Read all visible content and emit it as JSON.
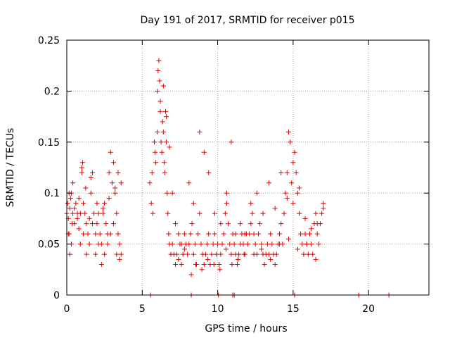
{
  "chart_data": {
    "type": "scatter",
    "title": "Day 191 of 2017, SRMTID for receiver p015",
    "xlabel": "GPS time / hours",
    "ylabel": "SRMTID / TECUs",
    "xlim": [
      0,
      24
    ],
    "ylim": [
      0,
      0.25
    ],
    "xticks": [
      0,
      5,
      10,
      15,
      20
    ],
    "yticks": [
      0,
      0.05,
      0.1,
      0.15,
      0.2,
      0.25
    ],
    "xtick_labels": [
      "0",
      "5",
      "10",
      "15",
      "20"
    ],
    "ytick_labels": [
      "0",
      "0.05",
      "0.1",
      "0.15",
      "0.2",
      "0.25"
    ],
    "grid": true,
    "marker": "+",
    "color": "#e00000",
    "series": [
      {
        "name": "SRMTID",
        "x": [
          0.0,
          0.05,
          0.1,
          0.15,
          0.2,
          0.25,
          0.3,
          0.35,
          0.4,
          0.5,
          0.6,
          0.7,
          0.8,
          0.9,
          1.0,
          1.05,
          1.1,
          1.2,
          1.3,
          1.4,
          1.5,
          1.6,
          1.7,
          1.8,
          1.9,
          2.0,
          2.1,
          2.2,
          2.3,
          2.4,
          2.5,
          2.6,
          2.7,
          2.8,
          2.9,
          3.0,
          3.1,
          3.2,
          3.3,
          3.4,
          3.5,
          3.6,
          0.1,
          0.2,
          0.3,
          0.5,
          0.7,
          0.9,
          1.1,
          1.3,
          1.5,
          1.7,
          1.9,
          2.1,
          2.3,
          2.5,
          2.7,
          2.9,
          3.1,
          3.3,
          3.5,
          0.15,
          0.4,
          0.8,
          1.0,
          1.25,
          1.6,
          2.0,
          2.4,
          2.8,
          3.2,
          3.4,
          3.6,
          5.5,
          5.6,
          5.7,
          5.8,
          5.9,
          6.0,
          6.05,
          6.1,
          6.15,
          6.2,
          6.25,
          6.3,
          6.35,
          6.4,
          6.45,
          6.5,
          6.55,
          6.6,
          6.65,
          6.7,
          6.75,
          6.8,
          6.9,
          7.0,
          7.1,
          7.2,
          7.3,
          7.4,
          7.5,
          7.6,
          7.7,
          7.8,
          7.9,
          5.65,
          5.85,
          6.0,
          6.2,
          6.4,
          6.6,
          6.8,
          7.0,
          7.2,
          7.4,
          7.6,
          7.8,
          8.0,
          8.1,
          8.2,
          8.3,
          8.4,
          8.5,
          8.6,
          8.7,
          8.8,
          8.9,
          9.0,
          9.1,
          9.2,
          9.3,
          9.4,
          9.5,
          9.6,
          9.7,
          9.8,
          9.9,
          10.0,
          10.1,
          10.2,
          10.3,
          10.4,
          10.5,
          10.6,
          10.7,
          10.8,
          10.9,
          11.0,
          11.1,
          11.2,
          11.3,
          11.4,
          11.5,
          11.6,
          11.7,
          11.8,
          11.9,
          8.1,
          8.4,
          8.8,
          9.1,
          9.4,
          9.8,
          10.2,
          10.6,
          10.9,
          11.2,
          11.5,
          11.8,
          8.25,
          8.55,
          8.95,
          9.35,
          9.75,
          10.15,
          10.55,
          10.95,
          11.35,
          11.75,
          12.0,
          12.1,
          12.2,
          12.3,
          12.4,
          12.5,
          12.6,
          12.7,
          12.8,
          12.9,
          13.0,
          13.1,
          13.2,
          13.3,
          13.4,
          13.5,
          13.6,
          13.7,
          13.8,
          13.9,
          14.0,
          14.1,
          14.2,
          14.3,
          14.4,
          14.5,
          14.6,
          14.7,
          14.8,
          14.9,
          15.0,
          15.1,
          15.2,
          15.3,
          15.4,
          15.5,
          15.6,
          15.7,
          15.8,
          15.9,
          16.0,
          16.1,
          16.2,
          16.3,
          16.4,
          16.5,
          16.6,
          16.7,
          16.8,
          16.9,
          17.0,
          12.2,
          12.6,
          13.0,
          13.4,
          13.8,
          14.2,
          14.6,
          15.0,
          15.4,
          15.8,
          16.2,
          16.6,
          17.0,
          12.4,
          12.9,
          13.5,
          14.1,
          14.7,
          15.3,
          15.9,
          16.5,
          5.55,
          8.25,
          10.05,
          11.0,
          11.1,
          15.1,
          19.35,
          21.35
        ],
        "y": [
          0.08,
          0.09,
          0.075,
          0.06,
          0.085,
          0.095,
          0.1,
          0.07,
          0.08,
          0.085,
          0.09,
          0.075,
          0.065,
          0.08,
          0.12,
          0.13,
          0.09,
          0.08,
          0.07,
          0.06,
          0.075,
          0.1,
          0.12,
          0.08,
          0.06,
          0.07,
          0.08,
          0.06,
          0.05,
          0.08,
          0.09,
          0.07,
          0.06,
          0.12,
          0.14,
          0.11,
          0.13,
          0.1,
          0.08,
          0.06,
          0.05,
          0.04,
          0.06,
          0.04,
          0.05,
          0.07,
          0.08,
          0.05,
          0.06,
          0.04,
          0.05,
          0.07,
          0.04,
          0.05,
          0.03,
          0.04,
          0.05,
          0.06,
          0.07,
          0.04,
          0.035,
          0.1,
          0.11,
          0.095,
          0.125,
          0.105,
          0.115,
          0.09,
          0.085,
          0.095,
          0.105,
          0.12,
          0.11,
          0.11,
          0.09,
          0.08,
          0.15,
          0.13,
          0.2,
          0.22,
          0.23,
          0.21,
          0.18,
          0.15,
          0.14,
          0.17,
          0.16,
          0.13,
          0.12,
          0.18,
          0.15,
          0.1,
          0.08,
          0.06,
          0.05,
          0.04,
          0.05,
          0.04,
          0.03,
          0.04,
          0.035,
          0.05,
          0.03,
          0.04,
          0.06,
          0.05,
          0.12,
          0.14,
          0.16,
          0.19,
          0.205,
          0.175,
          0.145,
          0.1,
          0.07,
          0.06,
          0.05,
          0.045,
          0.04,
          0.05,
          0.06,
          0.07,
          0.04,
          0.05,
          0.03,
          0.06,
          0.08,
          0.05,
          0.04,
          0.03,
          0.04,
          0.05,
          0.06,
          0.03,
          0.04,
          0.05,
          0.06,
          0.04,
          0.05,
          0.03,
          0.04,
          0.05,
          0.06,
          0.08,
          0.1,
          0.07,
          0.05,
          0.04,
          0.06,
          0.05,
          0.04,
          0.03,
          0.04,
          0.05,
          0.06,
          0.05,
          0.04,
          0.06,
          0.11,
          0.09,
          0.16,
          0.14,
          0.12,
          0.08,
          0.07,
          0.09,
          0.15,
          0.06,
          0.07,
          0.06,
          0.02,
          0.03,
          0.025,
          0.035,
          0.03,
          0.025,
          0.045,
          0.03,
          0.035,
          0.04,
          0.05,
          0.06,
          0.07,
          0.08,
          0.06,
          0.05,
          0.04,
          0.06,
          0.07,
          0.05,
          0.04,
          0.03,
          0.04,
          0.05,
          0.04,
          0.06,
          0.05,
          0.04,
          0.03,
          0.04,
          0.05,
          0.06,
          0.07,
          0.05,
          0.08,
          0.1,
          0.12,
          0.16,
          0.15,
          0.11,
          0.09,
          0.14,
          0.12,
          0.1,
          0.08,
          0.06,
          0.05,
          0.04,
          0.06,
          0.05,
          0.04,
          0.06,
          0.05,
          0.04,
          0.07,
          0.08,
          0.06,
          0.05,
          0.07,
          0.08,
          0.09,
          0.09,
          0.1,
          0.08,
          0.11,
          0.085,
          0.12,
          0.095,
          0.13,
          0.105,
          0.075,
          0.065,
          0.07,
          0.085,
          0.04,
          0.045,
          0.035,
          0.05,
          0.055,
          0.045,
          0.05,
          0.035,
          0,
          0,
          0,
          0,
          0,
          0,
          0,
          0
        ]
      }
    ]
  }
}
